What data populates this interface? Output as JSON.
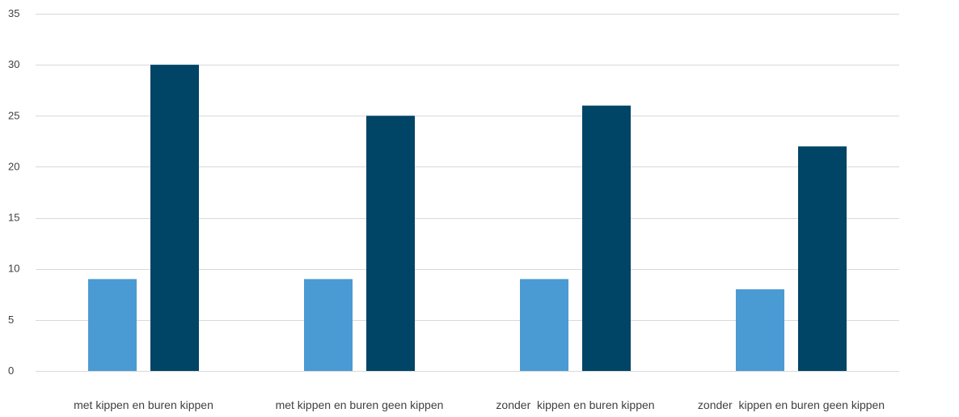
{
  "chart_data": {
    "type": "bar",
    "categories": [
      "met kippen en buren kippen",
      "met kippen en buren geen kippen",
      "zonder  kippen en buren kippen",
      "zonder  kippen en buren geen kippen"
    ],
    "series": [
      {
        "values": [
          9,
          9,
          9,
          8
        ],
        "color": "#4a9ad4"
      },
      {
        "values": [
          30,
          25,
          26,
          22
        ],
        "color": "#004466"
      }
    ],
    "title": "",
    "xlabel": "",
    "ylabel": "",
    "ylim": [
      0,
      35
    ],
    "yticks": [
      0,
      5,
      10,
      15,
      20,
      25,
      30,
      35
    ],
    "grid": true,
    "gridline_color": "#d9d9d9",
    "legend": "none"
  }
}
